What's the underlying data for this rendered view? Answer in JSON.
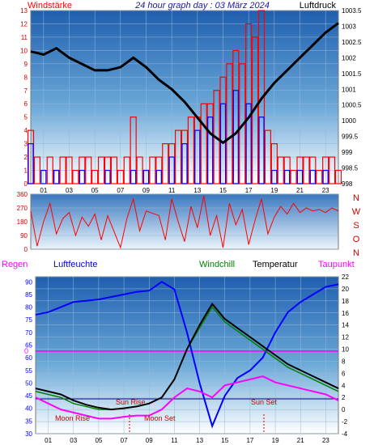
{
  "header": {
    "left_label": "Windstärke",
    "title": "24 hour graph day : 03 März 2024",
    "right_label": "Luftdruck"
  },
  "hour_ticks": [
    "01",
    "03",
    "05",
    "07",
    "09",
    "11",
    "13",
    "15",
    "17",
    "19",
    "21",
    "23"
  ],
  "wind_strength_axis": [
    "0",
    "1",
    "2",
    "3",
    "4",
    "5",
    "6",
    "7",
    "8",
    "9",
    "10",
    "11",
    "12",
    "13"
  ],
  "pressure_axis": [
    "998",
    "998.5",
    "999",
    "999.5",
    "1000",
    "1000.5",
    "1001",
    "1001.5",
    "1002",
    "1002.5",
    "1003",
    "1003.5"
  ],
  "wind_dir_axis": [
    "0",
    "90",
    "180",
    "270",
    "360"
  ],
  "compass_labels": [
    "N",
    "W",
    "S",
    "O",
    "N"
  ],
  "bottom_legend": {
    "rain": "Regen",
    "humidity": "Luftfeuchte",
    "windchill": "Windchill",
    "temperature": "Temperatur",
    "dewpoint": "Taupunkt"
  },
  "humidity_axis": [
    "30",
    "35",
    "40",
    "45",
    "50",
    "55",
    "60",
    "65",
    "70",
    "75",
    "80",
    "85",
    "90"
  ],
  "temp_axis": [
    "-4",
    "-2",
    "0",
    "2",
    "4",
    "6",
    "8",
    "10",
    "12",
    "14",
    "16",
    "18",
    "20",
    "22"
  ],
  "rain_zero": "0",
  "annotations": {
    "sun_rise": "Sun Rise",
    "sun_set": "Sun Set",
    "moon_rise": "Moon Rise",
    "moon_set": "Moon Set"
  },
  "colors": {
    "title": "#1a1aa0",
    "wind_red": "#ff0000",
    "gust_blue": "#0000ff",
    "pressure": "#000000",
    "humidity": "#0000ff",
    "temperature": "#000000",
    "windchill": "#008000",
    "dewpoint": "#ff00ff",
    "rain_line": "#ff00ff",
    "sun_line": "#00007f",
    "bg_top": "#1f5fae",
    "bg_bottom": "#ffffff"
  },
  "chart_data": [
    {
      "type": "line",
      "name": "pressure",
      "x_unit": "hour",
      "xlim": [
        0,
        24
      ],
      "ylim": [
        998,
        1003.5
      ],
      "points": [
        [
          0,
          1002.2
        ],
        [
          1,
          1002.1
        ],
        [
          2,
          1002.3
        ],
        [
          3,
          1002.0
        ],
        [
          4,
          1001.8
        ],
        [
          5,
          1001.6
        ],
        [
          6,
          1001.6
        ],
        [
          7,
          1001.7
        ],
        [
          8,
          1002.0
        ],
        [
          9,
          1001.7
        ],
        [
          10,
          1001.3
        ],
        [
          11,
          1001.0
        ],
        [
          12,
          1000.6
        ],
        [
          13,
          1000.1
        ],
        [
          14,
          999.6
        ],
        [
          15,
          999.3
        ],
        [
          16,
          999.6
        ],
        [
          17,
          1000.1
        ],
        [
          18,
          1000.7
        ],
        [
          19,
          1001.2
        ],
        [
          20,
          1001.6
        ],
        [
          21,
          1002.0
        ],
        [
          22,
          1002.4
        ],
        [
          23,
          1002.8
        ],
        [
          24,
          1003.1
        ]
      ]
    },
    {
      "type": "bar",
      "name": "wind",
      "x_unit": "hour",
      "ylim": [
        0,
        13
      ],
      "points": [
        [
          0,
          4
        ],
        [
          0.5,
          2
        ],
        [
          1,
          0
        ],
        [
          1.5,
          2
        ],
        [
          2,
          1
        ],
        [
          2.5,
          2
        ],
        [
          3,
          2
        ],
        [
          3.5,
          1
        ],
        [
          4,
          2
        ],
        [
          4.5,
          2
        ],
        [
          5,
          1
        ],
        [
          5.5,
          2
        ],
        [
          6,
          2
        ],
        [
          6.5,
          2
        ],
        [
          7,
          1
        ],
        [
          7.5,
          2
        ],
        [
          8,
          5
        ],
        [
          8.5,
          2
        ],
        [
          9,
          1
        ],
        [
          9.5,
          2
        ],
        [
          10,
          2
        ],
        [
          10.5,
          3
        ],
        [
          11,
          3
        ],
        [
          11.5,
          4
        ],
        [
          12,
          4
        ],
        [
          12.5,
          5
        ],
        [
          13,
          5
        ],
        [
          13.5,
          6
        ],
        [
          14,
          6
        ],
        [
          14.5,
          7
        ],
        [
          15,
          8
        ],
        [
          15.5,
          9
        ],
        [
          16,
          10
        ],
        [
          16.5,
          9
        ],
        [
          17,
          12
        ],
        [
          17.5,
          11
        ],
        [
          18,
          13
        ],
        [
          18.5,
          4
        ],
        [
          19,
          3
        ],
        [
          19.5,
          2
        ],
        [
          20,
          2
        ],
        [
          20.5,
          1
        ],
        [
          21,
          2
        ],
        [
          21.5,
          2
        ],
        [
          22,
          2
        ],
        [
          22.5,
          1
        ],
        [
          23,
          2
        ],
        [
          23.5,
          2
        ],
        [
          24,
          1
        ]
      ]
    },
    {
      "type": "bar",
      "name": "gust",
      "x_unit": "hour",
      "ylim": [
        0,
        13
      ],
      "points": [
        [
          0,
          3
        ],
        [
          1,
          1
        ],
        [
          2,
          1
        ],
        [
          3,
          0
        ],
        [
          4,
          1
        ],
        [
          5,
          0
        ],
        [
          6,
          1
        ],
        [
          7,
          0
        ],
        [
          8,
          1
        ],
        [
          9,
          1
        ],
        [
          10,
          1
        ],
        [
          11,
          2
        ],
        [
          12,
          3
        ],
        [
          13,
          4
        ],
        [
          14,
          5
        ],
        [
          15,
          6
        ],
        [
          16,
          7
        ],
        [
          17,
          6
        ],
        [
          18,
          5
        ],
        [
          19,
          1
        ],
        [
          20,
          1
        ],
        [
          21,
          1
        ],
        [
          22,
          1
        ],
        [
          23,
          1
        ],
        [
          24,
          0
        ]
      ]
    },
    {
      "type": "scatter",
      "name": "wind direction",
      "x_unit": "hour",
      "ylim": [
        0,
        360
      ],
      "points": [
        [
          0,
          250
        ],
        [
          0.5,
          20
        ],
        [
          1,
          180
        ],
        [
          1.5,
          300
        ],
        [
          2,
          100
        ],
        [
          2.5,
          200
        ],
        [
          3,
          240
        ],
        [
          3.5,
          90
        ],
        [
          4,
          210
        ],
        [
          4.5,
          150
        ],
        [
          5,
          230
        ],
        [
          5.5,
          60
        ],
        [
          6,
          220
        ],
        [
          7,
          10
        ],
        [
          7.5,
          200
        ],
        [
          8,
          330
        ],
        [
          8.5,
          120
        ],
        [
          9,
          250
        ],
        [
          10,
          220
        ],
        [
          10.5,
          60
        ],
        [
          11,
          330
        ],
        [
          11.5,
          180
        ],
        [
          12,
          50
        ],
        [
          12.5,
          280
        ],
        [
          13,
          140
        ],
        [
          13.5,
          350
        ],
        [
          14,
          90
        ],
        [
          14.5,
          220
        ],
        [
          15,
          10
        ],
        [
          15.5,
          300
        ],
        [
          16,
          160
        ],
        [
          16.5,
          260
        ],
        [
          17,
          30
        ],
        [
          17.5,
          190
        ],
        [
          18,
          330
        ],
        [
          18.5,
          100
        ],
        [
          19,
          210
        ],
        [
          19.5,
          280
        ],
        [
          20,
          230
        ],
        [
          20.5,
          300
        ],
        [
          21,
          240
        ],
        [
          21.5,
          270
        ],
        [
          22,
          250
        ],
        [
          22.5,
          260
        ],
        [
          23,
          240
        ],
        [
          23.5,
          270
        ],
        [
          24,
          250
        ]
      ]
    },
    {
      "type": "line",
      "name": "temperature",
      "x_unit": "hour",
      "xlim": [
        0,
        24
      ],
      "ylim": [
        -4,
        22
      ],
      "points": [
        [
          0,
          3.5
        ],
        [
          1,
          3.0
        ],
        [
          2,
          2.5
        ],
        [
          3,
          1.5
        ],
        [
          4,
          0.8
        ],
        [
          5,
          0.3
        ],
        [
          6,
          0.0
        ],
        [
          7,
          0.2
        ],
        [
          8,
          0.5
        ],
        [
          9,
          1.0
        ],
        [
          10,
          2.0
        ],
        [
          11,
          5.0
        ],
        [
          12,
          10.0
        ],
        [
          13,
          14.0
        ],
        [
          14,
          17.5
        ],
        [
          15,
          15.0
        ],
        [
          16,
          13.5
        ],
        [
          17,
          12.0
        ],
        [
          18,
          10.5
        ],
        [
          19,
          9.0
        ],
        [
          20,
          7.5
        ],
        [
          21,
          6.5
        ],
        [
          22,
          5.5
        ],
        [
          23,
          4.5
        ],
        [
          24,
          3.5
        ]
      ]
    },
    {
      "type": "line",
      "name": "humidity",
      "x_unit": "hour",
      "xlim": [
        0,
        24
      ],
      "ylim": [
        30,
        92
      ],
      "points": [
        [
          0,
          77
        ],
        [
          1,
          78
        ],
        [
          2,
          80
        ],
        [
          3,
          82
        ],
        [
          4,
          82.5
        ],
        [
          5,
          83
        ],
        [
          6,
          84
        ],
        [
          7,
          85
        ],
        [
          8,
          86
        ],
        [
          9,
          86.5
        ],
        [
          10,
          90
        ],
        [
          11,
          87
        ],
        [
          12,
          70
        ],
        [
          13,
          50
        ],
        [
          14,
          33
        ],
        [
          15,
          45
        ],
        [
          16,
          52
        ],
        [
          17,
          55
        ],
        [
          18,
          60
        ],
        [
          19,
          70
        ],
        [
          20,
          78
        ],
        [
          21,
          82
        ],
        [
          22,
          85
        ],
        [
          23,
          88
        ],
        [
          24,
          89
        ]
      ]
    },
    {
      "type": "line",
      "name": "dewpoint",
      "x_unit": "hour",
      "xlim": [
        0,
        24
      ],
      "ylim": [
        -4,
        22
      ],
      "points": [
        [
          0,
          2.0
        ],
        [
          1,
          1.0
        ],
        [
          2,
          0.0
        ],
        [
          3,
          -0.5
        ],
        [
          4,
          -1.0
        ],
        [
          5,
          -1.5
        ],
        [
          6,
          -1.5
        ],
        [
          7,
          -1.2
        ],
        [
          8,
          -1.0
        ],
        [
          9,
          -1.0
        ],
        [
          10,
          0.0
        ],
        [
          11,
          2.0
        ],
        [
          12,
          3.5
        ],
        [
          13,
          3.0
        ],
        [
          14,
          2.0
        ],
        [
          15,
          4.0
        ],
        [
          16,
          4.5
        ],
        [
          17,
          5.0
        ],
        [
          18,
          5.5
        ],
        [
          19,
          4.5
        ],
        [
          20,
          4.0
        ],
        [
          21,
          3.5
        ],
        [
          22,
          3.0
        ],
        [
          23,
          2.5
        ],
        [
          24,
          1.5
        ]
      ]
    },
    {
      "type": "line",
      "name": "windchill",
      "x_unit": "hour",
      "xlim": [
        0,
        24
      ],
      "ylim": [
        -4,
        22
      ],
      "points": [
        [
          0,
          3.0
        ],
        [
          1,
          2.5
        ],
        [
          2,
          2.0
        ],
        [
          3,
          1.0
        ],
        [
          4,
          0.5
        ],
        [
          5,
          0.0
        ],
        [
          6,
          0.0
        ],
        [
          7,
          0.2
        ],
        [
          8,
          0.5
        ],
        [
          9,
          1.0
        ],
        [
          10,
          2.0
        ],
        [
          11,
          5.0
        ],
        [
          12,
          10.0
        ],
        [
          13,
          13.5
        ],
        [
          14,
          17.0
        ],
        [
          15,
          14.5
        ],
        [
          16,
          13.0
        ],
        [
          17,
          11.5
        ],
        [
          18,
          10.0
        ],
        [
          19,
          8.5
        ],
        [
          20,
          7.0
        ],
        [
          21,
          6.0
        ],
        [
          22,
          5.0
        ],
        [
          23,
          4.0
        ],
        [
          24,
          3.0
        ]
      ]
    },
    {
      "type": "line",
      "name": "rain",
      "x_unit": "hour",
      "xlim": [
        0,
        24
      ],
      "points": [
        [
          0,
          0
        ],
        [
          24,
          0
        ]
      ]
    }
  ]
}
